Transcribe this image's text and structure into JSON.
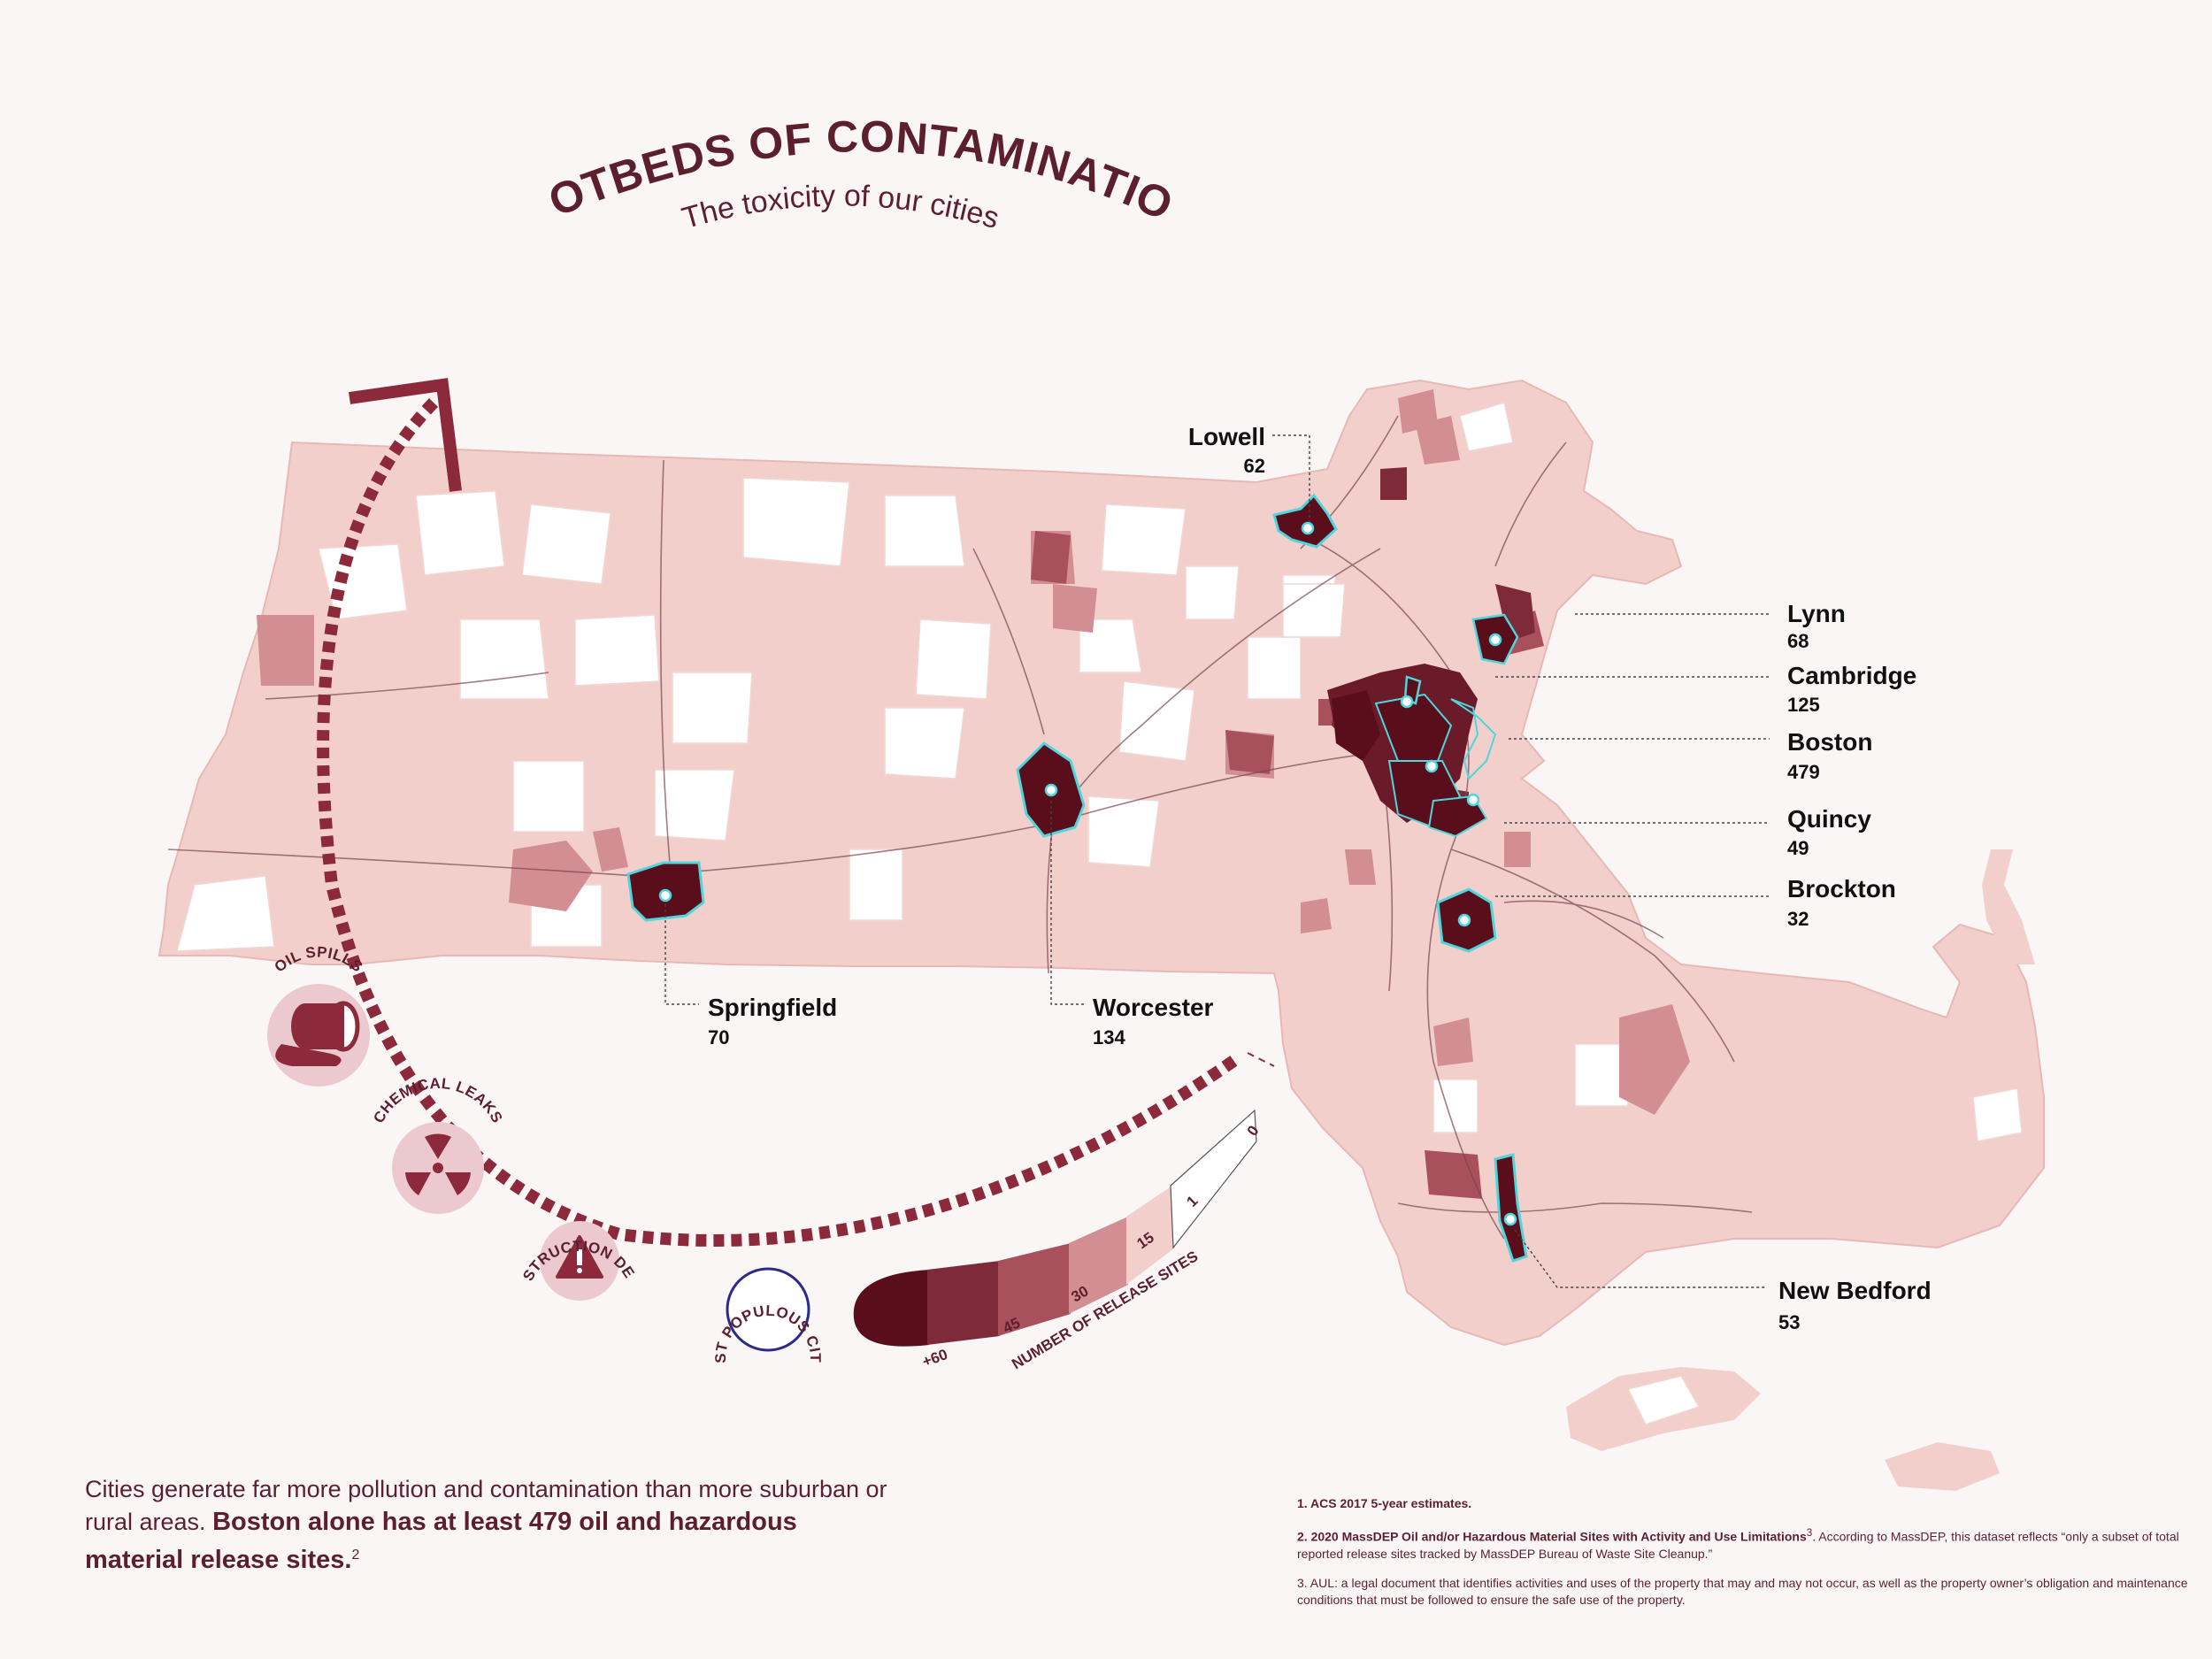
{
  "title": "HOTBEDS OF CONTAMINATION",
  "subtitle": "The toxicity of our cities",
  "colors": {
    "background": "#faf6f6",
    "text": "#5c1f2e",
    "level_60_plus": "#5a0d1b",
    "level_45": "#7e2a39",
    "level_30": "#a8505c",
    "level_15": "#d28e92",
    "level_1": "#f2cfcb",
    "level_0": "#ffffff",
    "city_outline": "#4fd5dc"
  },
  "categories": [
    {
      "label": "OIL SPILLS",
      "icon": "oil-barrel-icon"
    },
    {
      "label": "CHEMICAL LEAKS",
      "icon": "radiation-icon"
    },
    {
      "label": "CONSTRUCTION DEBRIS",
      "icon": "warning-triangle-icon"
    }
  ],
  "legend": {
    "caption": "NUMBER OF RELEASE SITES",
    "most_populous_label": "MOST POPULOUS CITIES",
    "marker": "1",
    "levels": [
      "+60",
      "45",
      "30",
      "15",
      "1",
      "0"
    ]
  },
  "cities": [
    {
      "name": "Lowell",
      "count": "62"
    },
    {
      "name": "Lynn",
      "count": "68"
    },
    {
      "name": "Cambridge",
      "count": "125"
    },
    {
      "name": "Boston",
      "count": "479"
    },
    {
      "name": "Quincy",
      "count": "49"
    },
    {
      "name": "Brockton",
      "count": "32"
    },
    {
      "name": "Springfield",
      "count": "70"
    },
    {
      "name": "Worcester",
      "count": "134"
    },
    {
      "name": "New Bedford",
      "count": "53"
    }
  ],
  "summary": {
    "part1": "Cities generate far more pollution and contamination than more suburban or rural areas.",
    "part2": "Boston alone has at least 479 oil and hazardous material release sites.",
    "ref": "2"
  },
  "footnotes": [
    {
      "bold": "1. ACS 2017 5-year estimates.",
      "ref": "",
      "text": ""
    },
    {
      "bold": "2. 2020 MassDEP Oil and/or Hazardous Material Sites with Activity and Use Limitations",
      "ref": "3",
      "text": ". According to MassDEP, this dataset reflects “only a subset of total reported release sites tracked by MassDEP Bureau of Waste Site Cleanup.”"
    },
    {
      "bold": "",
      "ref": "",
      "text": "3. AUL: a legal document that identifies activities and uses of the property that may and may not occur, as well as the property owner’s obligation and maintenance conditions that must be followed to ensure the safe use of the property."
    }
  ]
}
